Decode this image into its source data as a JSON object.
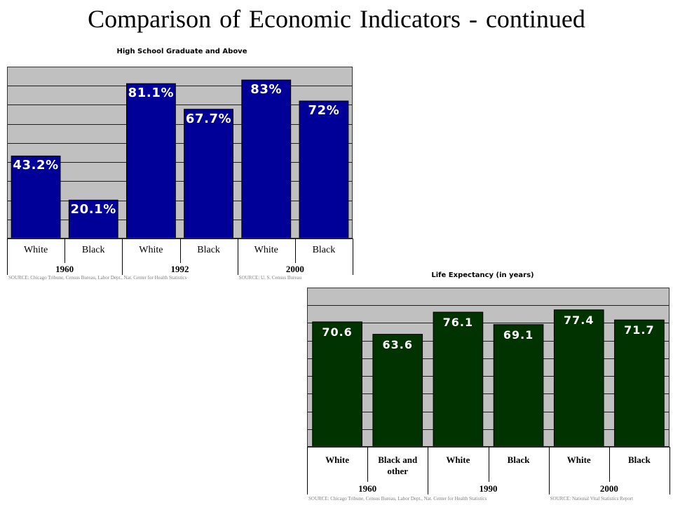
{
  "slide": {
    "title": "Comparison of Economic Indicators - continued"
  },
  "chart_data": [
    {
      "type": "bar",
      "title": "High School Graduate and Above",
      "categories": [
        "White",
        "Black",
        "White",
        "Black",
        "White",
        "Black"
      ],
      "groups": [
        "1960",
        "1992",
        "2000"
      ],
      "values": [
        43.2,
        20.1,
        81.1,
        67.7,
        83,
        72
      ],
      "data_labels": [
        "43.2%",
        "20.1%",
        "81.1%",
        "67.7%",
        "83%",
        "72%"
      ],
      "ylim": [
        0,
        90
      ],
      "y_gridline_step": 10,
      "grid": true,
      "legend": false,
      "colors": {
        "bars": "#000099",
        "plot_background": "#c0c0c0",
        "data_labels": "#ffffff"
      },
      "sources": [
        "SOURCE: Chicago Tribune, Census Bureau, Labor Dept., Nat. Center for Health Statistics",
        "SOURCE: U. S. Census Bureau"
      ]
    },
    {
      "type": "bar",
      "title": "Life Expectancy (in years)",
      "categories": [
        "White",
        "Black and other",
        "White",
        "Black",
        "White",
        "Black"
      ],
      "groups": [
        "1960",
        "1990",
        "2000"
      ],
      "values": [
        70.6,
        63.6,
        76.1,
        69.1,
        77.4,
        71.7
      ],
      "data_labels": [
        "70.6",
        "63.6",
        "76.1",
        "69.1",
        "77.4",
        "71.7"
      ],
      "ylim": [
        0,
        90
      ],
      "y_gridline_step": 10,
      "grid": true,
      "legend": false,
      "colors": {
        "bars": "#003300",
        "plot_background": "#c0c0c0",
        "data_labels": "#ffffff"
      },
      "sources": [
        "SOURCE: Chicago Tribune, Census Bureau, Labor Dept., Nat. Center for Health Statistics",
        "SOURCE: National Vital Statistics Report"
      ]
    }
  ]
}
